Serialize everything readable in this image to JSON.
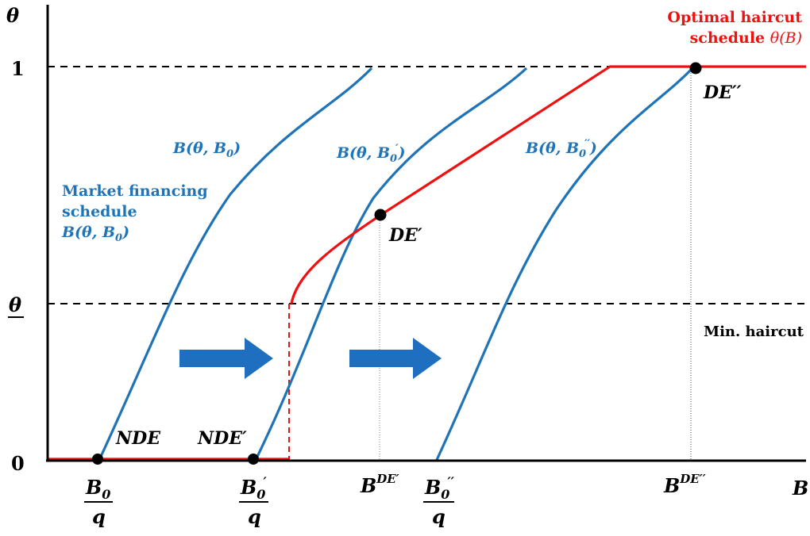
{
  "axes": {
    "y_label": "θ",
    "x_label": "B",
    "y_ticks": {
      "one": "1",
      "theta_min": "θ",
      "zero": "0"
    }
  },
  "x_ticks": {
    "b0": {
      "num": "B",
      "num_sub": "0",
      "den": "q"
    },
    "b0p": {
      "num": "B",
      "num_sub": "0",
      "num_sup": "′",
      "den": "q"
    },
    "bde_p": {
      "base": "B",
      "sup": "DE′"
    },
    "b0pp": {
      "num": "B",
      "num_sub": "0",
      "num_sup": "′′",
      "den": "q"
    },
    "bde_pp": {
      "base": "B",
      "sup": "DE′′"
    }
  },
  "labels": {
    "optimal_line1": "Optimal haircut",
    "optimal_line2_text": "schedule ",
    "optimal_line2_math": "θ(B)",
    "market_line1": "Market financing",
    "market_line2": "schedule",
    "market_line3": "B(θ, B",
    "market_line3_sub": "0",
    "market_line3_close": ")",
    "curve1_label": "B(θ, B",
    "curve1_sub": "0",
    "curve1_close": ")",
    "curve2_label": "B(θ, B",
    "curve2_sub": "0",
    "curve2_sup": "′",
    "curve2_close": ")",
    "curve3_label": "B(θ, B",
    "curve3_sub": "0",
    "curve3_sup": "′′",
    "curve3_close": ")",
    "min_haircut": "Min. haircut"
  },
  "points": {
    "nde": "NDE",
    "nde_p": "NDE′",
    "de_p": "DE′",
    "de_pp": "DE′′"
  },
  "colors": {
    "blue": "#1f73b7",
    "red": "#ee1111",
    "black": "#000000",
    "arrow": "#1e6fc0"
  }
}
